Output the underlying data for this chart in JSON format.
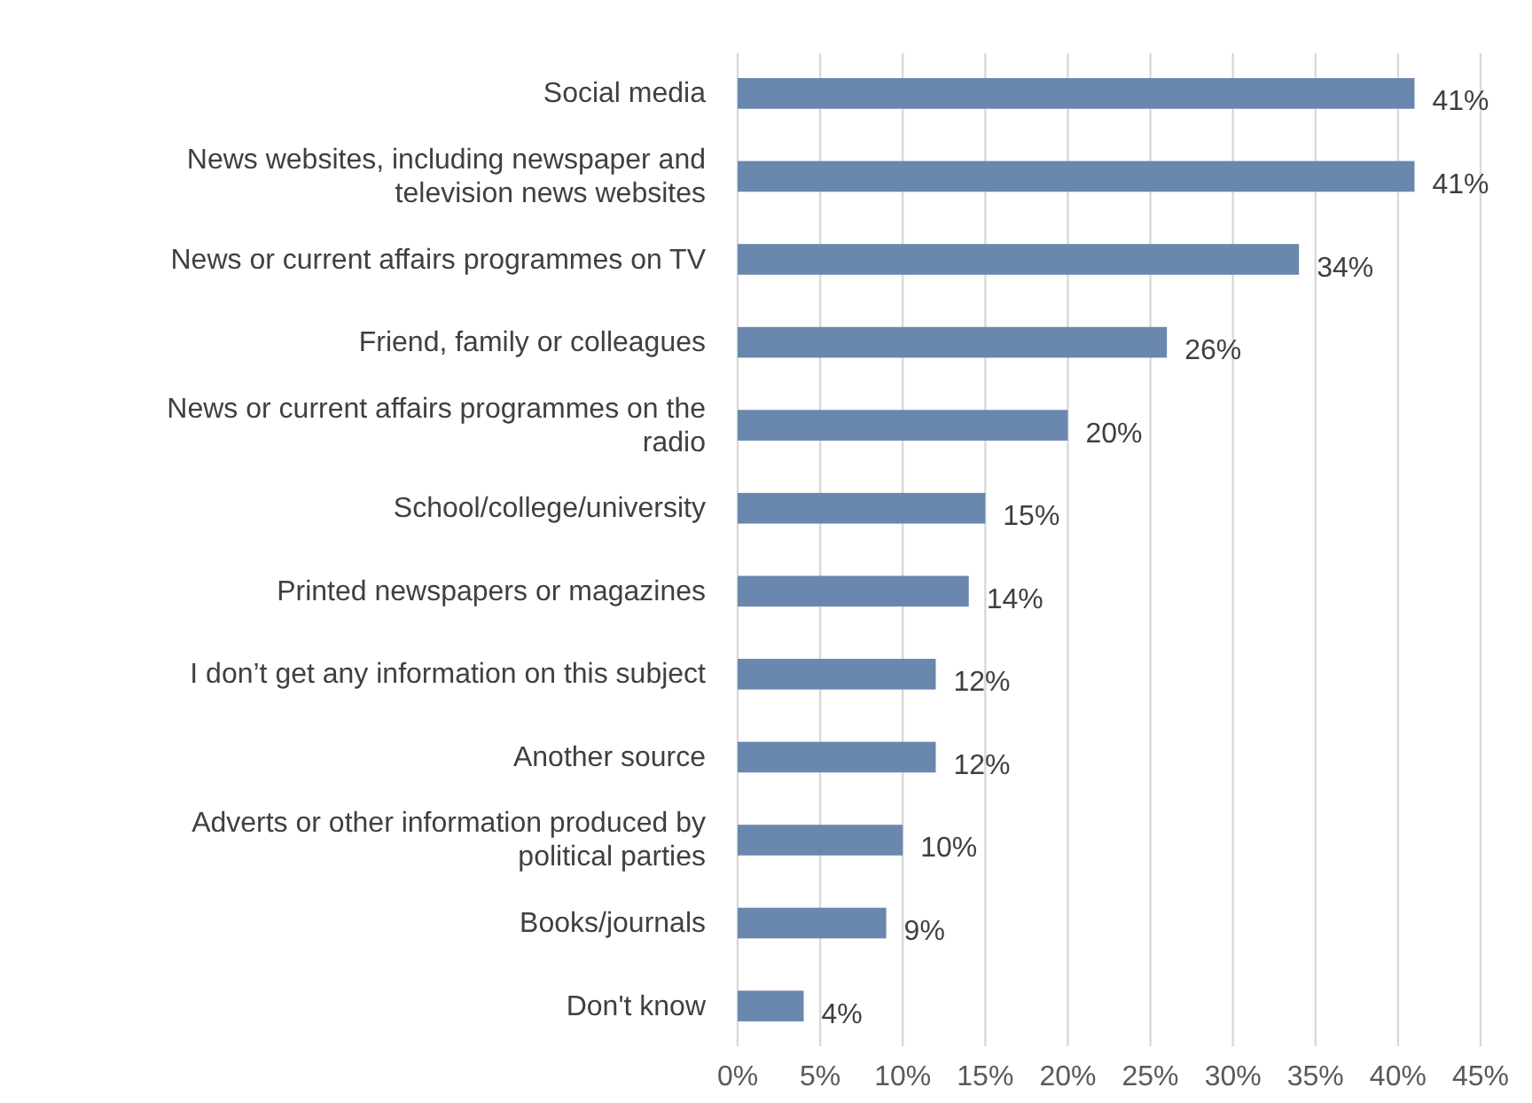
{
  "chart_data": {
    "type": "bar",
    "orientation": "horizontal",
    "categories": [
      "Social media",
      "News websites, including newspaper and television news websites",
      "News or current affairs programmes on TV",
      "Friend, family or colleagues",
      "News or current affairs programmes on the radio",
      "School/college/university",
      "Printed newspapers or magazines",
      "I don’t get any information on this subject",
      "Another source",
      "Adverts or other information produced by political parties",
      "Books/journals",
      "Don't know"
    ],
    "values": [
      41,
      41,
      34,
      26,
      20,
      15,
      14,
      12,
      12,
      10,
      9,
      4
    ],
    "color": "#6a87ae",
    "xlim": [
      0,
      45
    ],
    "xticks": [
      {
        "value": 0,
        "label": "0%"
      },
      {
        "value": 5,
        "label": "5%"
      },
      {
        "value": 10,
        "label": "10%"
      },
      {
        "value": 15,
        "label": "15%"
      },
      {
        "value": 20,
        "label": "20%"
      },
      {
        "value": 25,
        "label": "25%"
      },
      {
        "value": 30,
        "label": "30%"
      },
      {
        "value": 35,
        "label": "35%"
      },
      {
        "value": 40,
        "label": "40%"
      },
      {
        "value": 45,
        "label": "45%"
      }
    ],
    "grid": "x",
    "value_labels": [
      "41%",
      "41%",
      "34%",
      "26%",
      "20%",
      "15%",
      "14%",
      "12%",
      "12%",
      "10%",
      "9%",
      "4%"
    ]
  }
}
